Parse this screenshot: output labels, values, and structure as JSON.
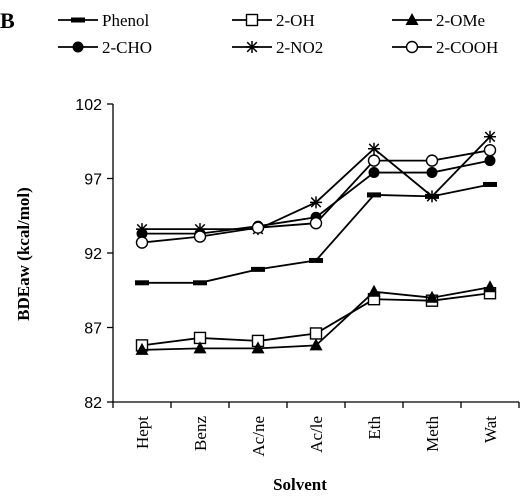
{
  "panel_label": "B",
  "chart_data": {
    "type": "line",
    "title": "",
    "xlabel": "Solvent",
    "ylabel": "BDEaw (kcal/mol)",
    "categories": [
      "Hept",
      "Benz",
      "Ac/ne",
      "Ac/le",
      "Eth",
      "Meth",
      "Wat"
    ],
    "ylim": [
      82,
      102
    ],
    "yticks": [
      82,
      87,
      92,
      97,
      102
    ],
    "grid": false,
    "legend": "top",
    "series": [
      {
        "name": "Phenol",
        "marker": "dash",
        "values": [
          90.0,
          90.0,
          90.9,
          91.5,
          95.9,
          95.8,
          96.6
        ]
      },
      {
        "name": "2-OH",
        "marker": "open-square",
        "values": [
          85.8,
          86.3,
          86.1,
          86.6,
          88.9,
          88.8,
          89.3
        ]
      },
      {
        "name": "2-OMe",
        "marker": "filled-triangle",
        "values": [
          85.5,
          85.6,
          85.6,
          85.8,
          89.4,
          89.0,
          89.7
        ]
      },
      {
        "name": "2-CHO",
        "marker": "filled-circle",
        "values": [
          93.3,
          93.3,
          93.8,
          94.4,
          97.4,
          97.4,
          98.2
        ]
      },
      {
        "name": "2-NO2",
        "marker": "star",
        "values": [
          93.6,
          93.6,
          93.6,
          95.4,
          99.0,
          95.8,
          99.8
        ]
      },
      {
        "name": "2-COOH",
        "marker": "open-circle",
        "values": [
          92.7,
          93.1,
          93.7,
          94.0,
          98.2,
          98.2,
          98.9
        ]
      }
    ]
  }
}
